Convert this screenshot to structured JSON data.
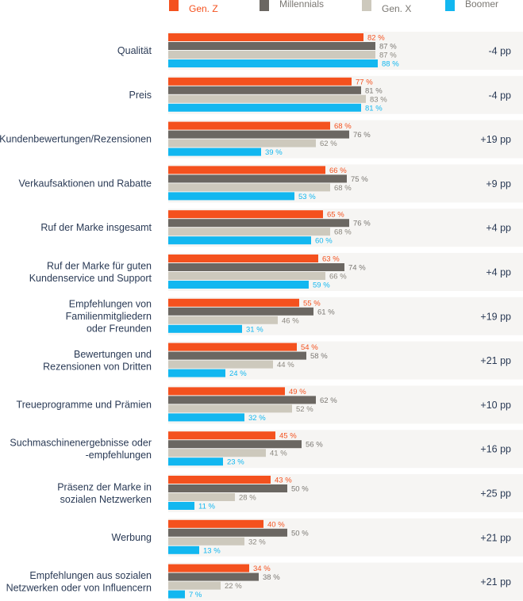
{
  "chart_data": {
    "type": "bar",
    "orientation": "horizontal",
    "legend_position": "top",
    "categories": [
      [
        "Qualität"
      ],
      [
        "Preis"
      ],
      [
        "Kundenbewertungen/Rezensionen"
      ],
      [
        "Verkaufsaktionen und Rabatte"
      ],
      [
        "Ruf der Marke insgesamt"
      ],
      [
        "Ruf der Marke für guten",
        "Kundenservice und Support"
      ],
      [
        "Empfehlungen von",
        "Familienmitgliedern",
        "oder Freunden"
      ],
      [
        "Bewertungen und",
        "Rezensionen von Dritten"
      ],
      [
        "Treueprogramme und Prämien"
      ],
      [
        "Suchmaschinenergebnisse oder",
        "-empfehlungen"
      ],
      [
        "Präsenz der Marke in",
        "sozialen Netzwerken"
      ],
      [
        "Werbung"
      ],
      [
        "Empfehlungen aus sozialen",
        "Netzwerken oder von Influencern"
      ]
    ],
    "series": [
      {
        "name": "Gen. Z",
        "color": "#f4511e",
        "label_color": "#f4511e",
        "values": [
          82,
          77,
          68,
          66,
          65,
          63,
          55,
          54,
          49,
          45,
          43,
          40,
          34
        ]
      },
      {
        "name": "Millennials",
        "color": "#6b6762",
        "label_color": "#7a7772",
        "values": [
          87,
          81,
          76,
          75,
          76,
          74,
          61,
          58,
          62,
          56,
          50,
          50,
          38
        ]
      },
      {
        "name": "Gen. X",
        "color": "#cdc9bd",
        "label_color": "#8a867e",
        "values": [
          87,
          83,
          62,
          68,
          68,
          66,
          46,
          44,
          52,
          41,
          28,
          32,
          22
        ]
      },
      {
        "name": "Boomer",
        "color": "#12b7f0",
        "label_color": "#12b7f0",
        "values": [
          88,
          81,
          39,
          53,
          60,
          59,
          31,
          24,
          32,
          23,
          11,
          13,
          7
        ]
      }
    ],
    "value_suffix": " %",
    "differences": [
      "-4 pp",
      "-4 pp",
      "+19 pp",
      "+9 pp",
      "+4 pp",
      "+4 pp",
      "+19 pp",
      "+21 pp",
      "+10 pp",
      "+16 pp",
      "+25 pp",
      "+21 pp",
      "+21 pp"
    ],
    "xlim": [
      0,
      100
    ],
    "grid": false,
    "row_background": "#f6f5f3"
  }
}
